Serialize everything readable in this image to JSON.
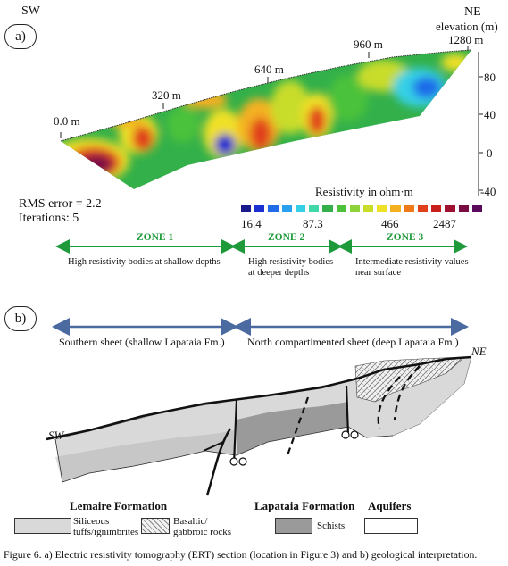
{
  "panel_a": {
    "label": "a)",
    "sw": "SW",
    "ne": "NE",
    "elevation_label": "elevation (m)",
    "distance_ticks": [
      "0.0 m",
      "320 m",
      "640 m",
      "960 m",
      "1280 m"
    ],
    "elevation_ticks": [
      "80",
      "40",
      "0",
      "-40"
    ],
    "rms": "RMS error = 2.2",
    "iterations": "Iterations: 5",
    "resistivity_title": "Resistivity in ohm·m",
    "scale_values": [
      "16.4",
      "87.3",
      "466",
      "2487"
    ],
    "scale_colors": [
      "#1a1a8a",
      "#1c2fd0",
      "#1f6be8",
      "#2aa0f0",
      "#35d0e6",
      "#40d8a8",
      "#33b04a",
      "#4cc23a",
      "#8fd23a",
      "#c8dc2c",
      "#f0e028",
      "#f4b020",
      "#f07a18",
      "#e0401a",
      "#c8201c",
      "#a01030",
      "#7a0c44",
      "#5a0a5a"
    ],
    "zones": [
      {
        "name": "ZONE 1",
        "desc": "High resistivity bodies at shallow depths"
      },
      {
        "name": "ZONE 2",
        "desc": "High resistivity bodies at deeper depths"
      },
      {
        "name": "ZONE 3",
        "desc": "Intermediate resistivity values near surface"
      }
    ]
  },
  "panel_b": {
    "label": "b)",
    "southern_sheet": "Southern sheet (shallow Lapataia Fm.)",
    "north_sheet": "North compartimented sheet (deep Lapataia Fm.)",
    "sw": "SW",
    "ne": "NE",
    "legend": {
      "lemaire": "Lemaire Formation",
      "lapataia": "Lapataia Formation",
      "aquifers": "Aquifers",
      "siliceous": "Siliceous tuffs/ignimbrites",
      "basaltic": "Basaltic/ gabbroic rocks",
      "schists": "Schists"
    }
  },
  "caption": "Figure 6. a) Electric resistivity tomography (ERT) section (location in Figure 3) and b) geological interpretation."
}
